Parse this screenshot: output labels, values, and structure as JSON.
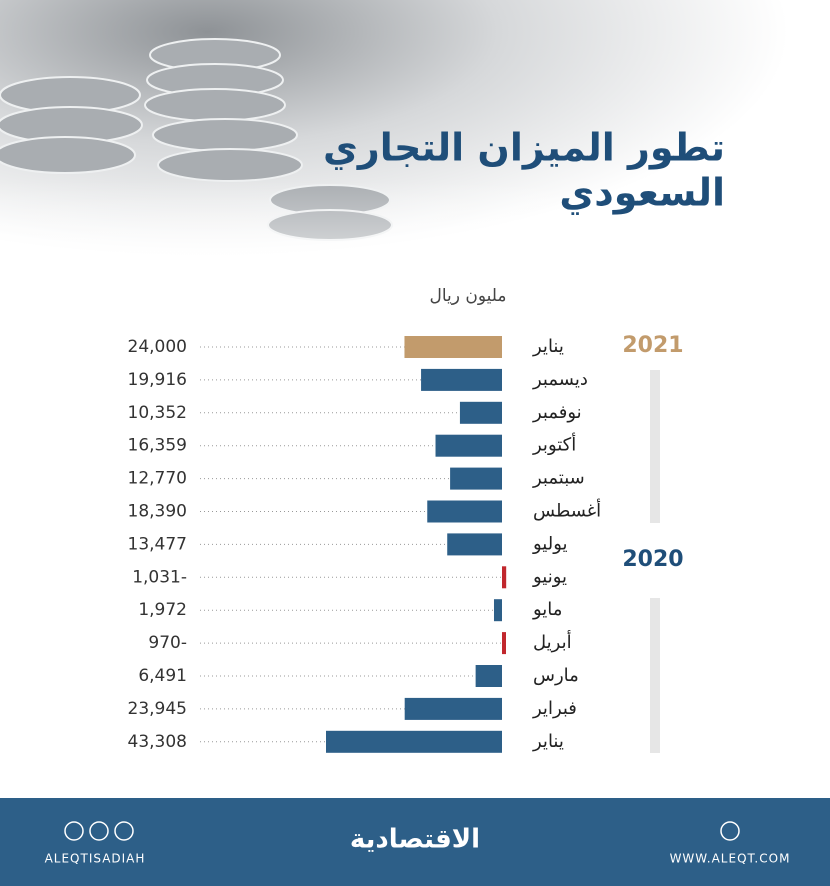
{
  "chart_data": {
    "type": "bar",
    "title": [
      "تطور الميزان التجاري",
      "السعودي"
    ],
    "unit": "مليون ريال",
    "groups": [
      "2021",
      "2020"
    ],
    "categories": [
      "يناير",
      "ديسمبر",
      "نوفمبر",
      "أكتوبر",
      "سبتمبر",
      "أغسطس",
      "يوليو",
      "يونيو",
      "مايو",
      "أبريل",
      "مارس",
      "فبراير",
      "يناير"
    ],
    "values": [
      24000,
      19916,
      10352,
      16359,
      12770,
      18390,
      13477,
      -1031,
      1972,
      -970,
      6491,
      23945,
      43308
    ],
    "value_labels": [
      "24,000",
      "19,916",
      "10,352",
      "16,359",
      "12,770",
      "18,390",
      "13,477",
      "1,031-",
      "1,972",
      "970-",
      "6,491",
      "23,945",
      "43,308"
    ],
    "colors": [
      "#c29b6c",
      "#2d5f88",
      "#2d5f88",
      "#2d5f88",
      "#2d5f88",
      "#2d5f88",
      "#2d5f88",
      "#c1272d",
      "#2d5f88",
      "#c1272d",
      "#2d5f88",
      "#2d5f88",
      "#2d5f88"
    ],
    "footer": {
      "social": "ALEQTISADIAH",
      "logo": "الاقتصادية",
      "website": "WWW.ALEQT.COM"
    }
  }
}
